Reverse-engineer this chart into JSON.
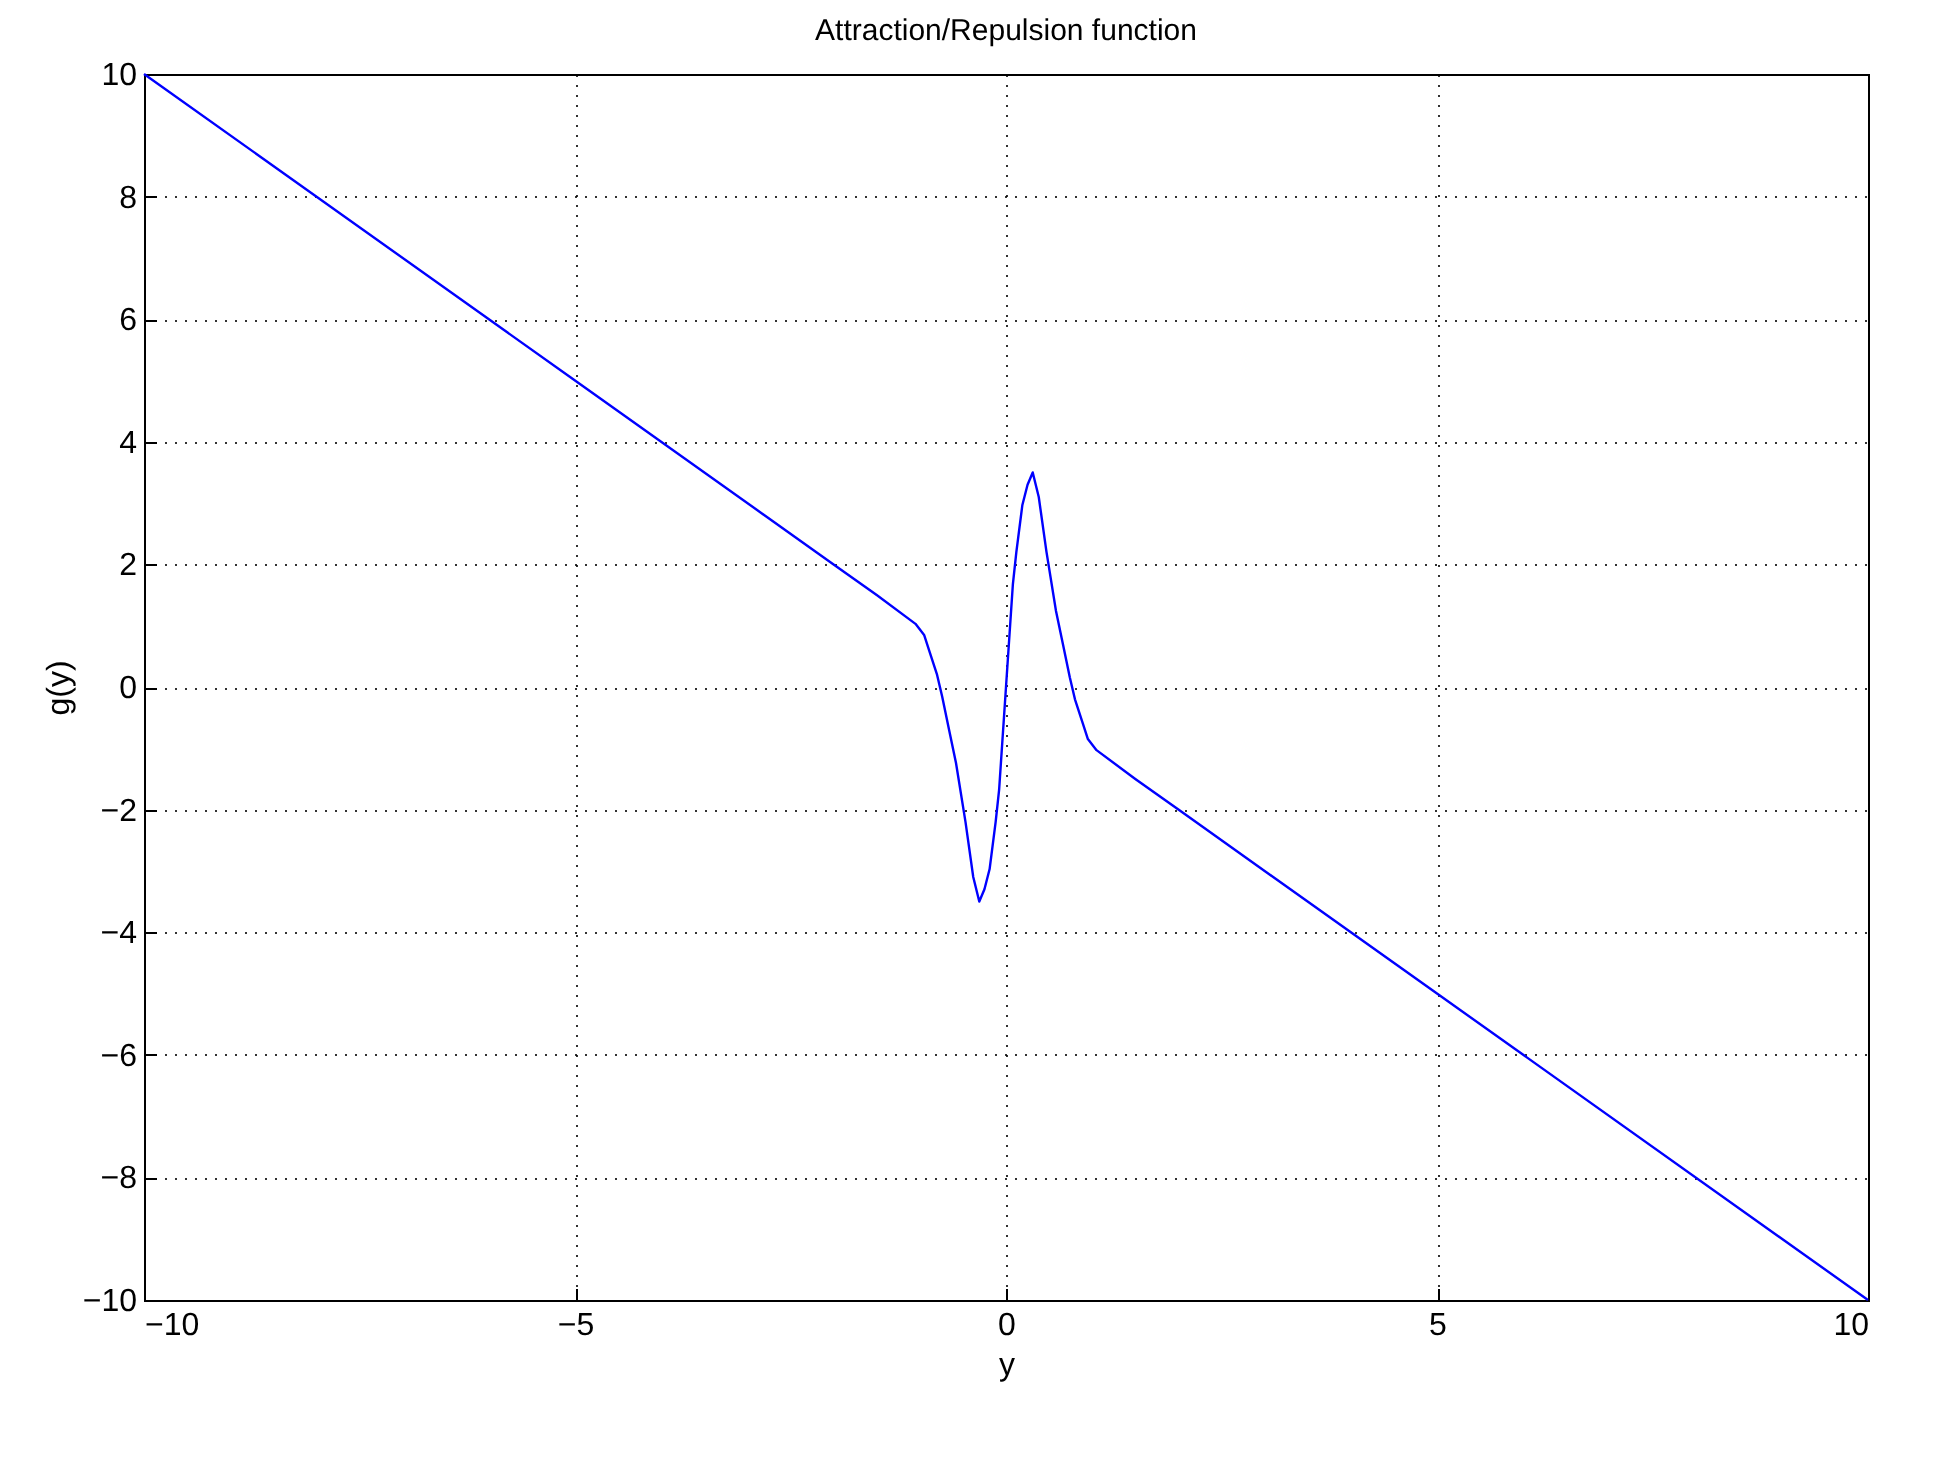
{
  "chart_data": {
    "type": "line",
    "title": "Attraction/Repulsion function",
    "xlabel": "y",
    "ylabel": "g(y)",
    "x": [
      -10,
      -5,
      -2,
      -1.5,
      -1.05,
      -0.95,
      -0.89,
      -0.8,
      -0.74,
      -0.66,
      -0.58,
      -0.47,
      -0.38,
      -0.31,
      -0.25,
      -0.19,
      -0.12,
      -0.08,
      0,
      0.08,
      0.12,
      0.19,
      0.25,
      0.31,
      0.38,
      0.47,
      0.58,
      0.66,
      0.74,
      0.8,
      0.89,
      0.95,
      1.05,
      1.5,
      2,
      5,
      10
    ],
    "series": [
      {
        "color": "#0000ff",
        "values": [
          10,
          5,
          2,
          1.5,
          1.03,
          0.85,
          0.59,
          0.2,
          -0.16,
          -0.7,
          -1.24,
          -2.2,
          -3.1,
          -3.5,
          -3.3,
          -2.97,
          -2.2,
          -1.68,
          0,
          1.68,
          2.2,
          2.97,
          3.3,
          3.5,
          3.1,
          2.2,
          1.24,
          0.7,
          0.16,
          -0.2,
          -0.59,
          -0.85,
          -1.03,
          -1.5,
          -2,
          -5,
          -10
        ]
      }
    ],
    "xlim": [
      -10,
      10
    ],
    "ylim": [
      -10,
      10
    ],
    "xticks": [
      -10,
      -5,
      0,
      5,
      10
    ],
    "yticks": [
      -10,
      -8,
      -6,
      -4,
      -2,
      0,
      2,
      4,
      6,
      8,
      10
    ],
    "grid": true,
    "line_style": "solid",
    "marker": "none"
  }
}
